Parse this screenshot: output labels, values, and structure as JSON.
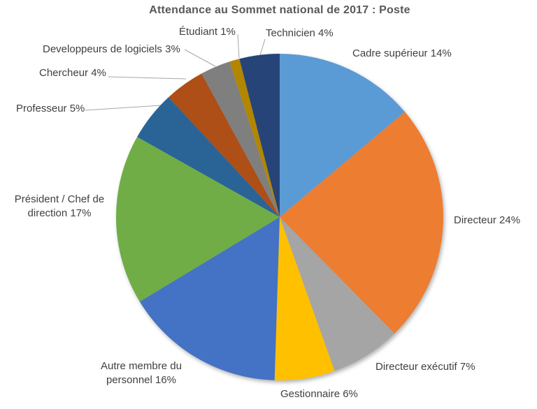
{
  "title": "Attendance au Sommet national de 2017 : Poste",
  "chart_data": {
    "type": "pie",
    "title": "Attendance au Sommet national de 2017 : Poste",
    "unit": "%",
    "legend_position": "none",
    "label_style": "outside-end, category name + percentage, with leader lines on small slices",
    "start_angle_deg": 0,
    "direction": "clockwise",
    "background_color": "#FFFFFF",
    "title_color": "#595959",
    "label_color": "#404040",
    "leader_line_color": "#A6A6A6",
    "slices": [
      {
        "label": "Cadre supérieur",
        "value": 14,
        "color": "#5B9BD5",
        "label_text": "Cadre supérieur 14%"
      },
      {
        "label": "Directeur",
        "value": 24,
        "color": "#ED7D31",
        "label_text": "Directeur 24%"
      },
      {
        "label": "Directeur exécutif",
        "value": 7,
        "color": "#A5A5A5",
        "label_text": "Directeur exécutif 7%"
      },
      {
        "label": "Gestionnaire",
        "value": 6,
        "color": "#FFC000",
        "label_text": "Gestionnaire 6%"
      },
      {
        "label": "Autre membre du personnel",
        "value": 16,
        "color": "#4472C4",
        "label_text": "Autre membre du personnel 16%"
      },
      {
        "label": "Président / Chef de direction",
        "value": 17,
        "color": "#70AD47",
        "label_text": "Président / Chef de direction 17%"
      },
      {
        "label": "Professeur",
        "value": 5,
        "color": "#2A6497",
        "label_text": "Professeur 5%"
      },
      {
        "label": "Chercheur",
        "value": 4,
        "color": "#AD4F16",
        "label_text": "Chercheur 4%"
      },
      {
        "label": "Developpeurs de logiciels",
        "value": 3,
        "color": "#7F7F7F",
        "label_text": "Developpeurs de logiciels 3%"
      },
      {
        "label": "Étudiant",
        "value": 1,
        "color": "#B28600",
        "label_text": "Étudiant 1%"
      },
      {
        "label": "Technicien",
        "value": 4,
        "color": "#264478",
        "label_text": "Technicien 4%"
      }
    ]
  }
}
